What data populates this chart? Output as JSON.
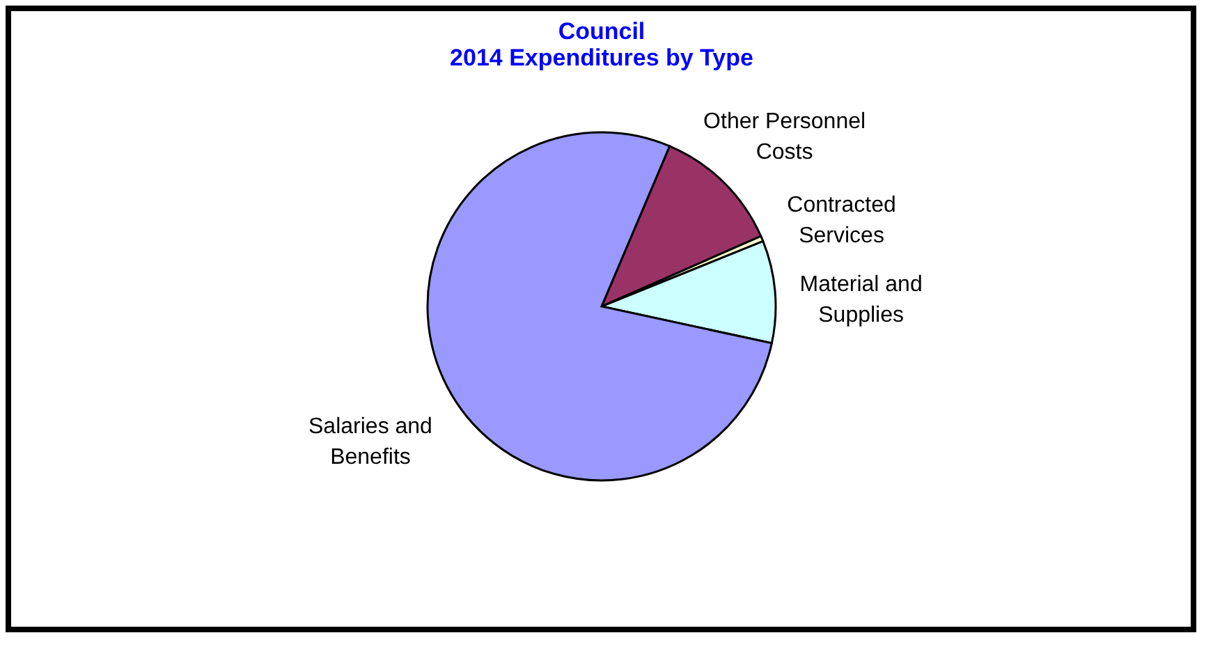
{
  "chart_data": {
    "type": "pie",
    "title": "Council",
    "subtitle": "2014 Expenditures by Type",
    "categories": [
      "Other Personnel Costs",
      "Contracted Services",
      "Material and Supplies",
      "Salaries and Benefits"
    ],
    "values": [
      12,
      0.5,
      9.5,
      78
    ],
    "colors": [
      "#993366",
      "#ffffcc",
      "#ccffff",
      "#9999ff"
    ],
    "legend": false
  }
}
